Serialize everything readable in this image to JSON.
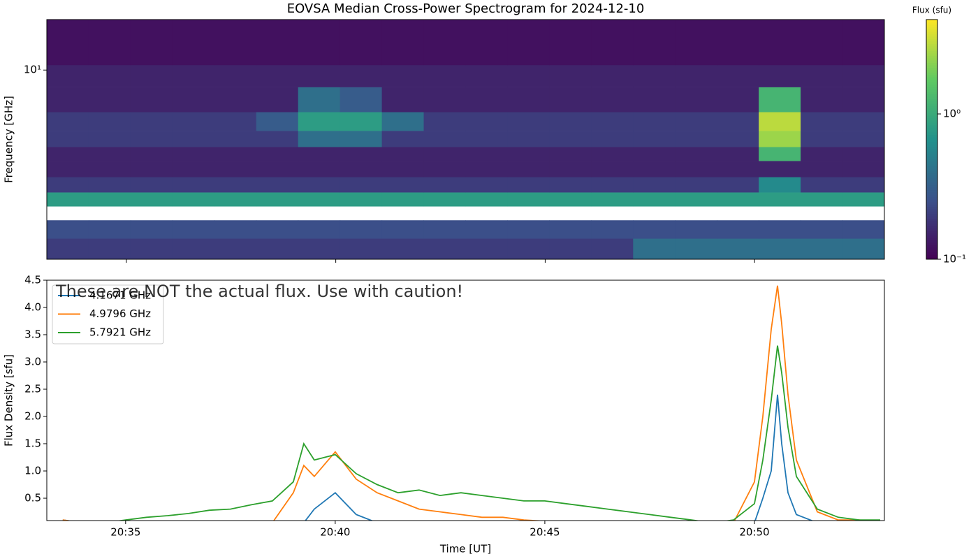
{
  "chart_data": [
    {
      "type": "heatmap",
      "title": "EOVSA Median Cross-Power Spectrogram for 2024-12-10",
      "ylabel": "Frequency [GHz]",
      "colorbar_label": "Flux (sfu)",
      "colormap": "viridis",
      "log": true,
      "xbins": [
        33.1,
        34.1,
        35.1,
        36.1,
        37.1,
        38.1,
        39.1,
        40.1,
        41.1,
        42.1,
        43.1,
        44.1,
        45.1,
        46.1,
        47.1,
        48.1,
        49.1,
        50.1,
        51.1,
        52.1,
        53.1
      ],
      "ybins": [
        1.64,
        2.0,
        2.38,
        2.72,
        3.11,
        3.6,
        4.2,
        4.8,
        5.6,
        6.7,
        8.5,
        10.5,
        16.2
      ],
      "z": [
        [
          0.2,
          0.2,
          0.2,
          0.2,
          0.2,
          0.2,
          0.2,
          0.2,
          0.2,
          0.2,
          0.2,
          0.2,
          0.2,
          0.2,
          0.4,
          0.4,
          0.4,
          0.4,
          0.4,
          0.4
        ],
        [
          0.25,
          0.25,
          0.25,
          0.25,
          0.25,
          0.25,
          0.25,
          0.25,
          0.25,
          0.25,
          0.25,
          0.25,
          0.25,
          0.25,
          0.25,
          0.25,
          0.25,
          0.25,
          0.25,
          0.25
        ],
        [
          null,
          null,
          null,
          null,
          null,
          null,
          null,
          null,
          null,
          null,
          null,
          null,
          null,
          null,
          null,
          null,
          null,
          null,
          null,
          null
        ],
        [
          0.8,
          0.8,
          0.8,
          0.8,
          0.8,
          0.8,
          0.8,
          0.8,
          0.8,
          0.8,
          0.8,
          0.8,
          0.8,
          0.8,
          0.8,
          0.8,
          0.8,
          0.8,
          0.8,
          0.8
        ],
        [
          0.2,
          0.2,
          0.2,
          0.2,
          0.2,
          0.2,
          0.2,
          0.2,
          0.2,
          0.2,
          0.2,
          0.2,
          0.2,
          0.2,
          0.2,
          0.2,
          0.2,
          0.6,
          0.2,
          0.2
        ],
        [
          0.15,
          0.15,
          0.15,
          0.15,
          0.15,
          0.15,
          0.15,
          0.15,
          0.15,
          0.15,
          0.15,
          0.15,
          0.15,
          0.15,
          0.15,
          0.15,
          0.15,
          0.15,
          0.15,
          0.15
        ],
        [
          0.15,
          0.15,
          0.15,
          0.15,
          0.15,
          0.15,
          0.15,
          0.15,
          0.15,
          0.15,
          0.15,
          0.15,
          0.15,
          0.15,
          0.15,
          0.15,
          0.15,
          1.2,
          0.15,
          0.15
        ],
        [
          0.2,
          0.2,
          0.2,
          0.2,
          0.2,
          0.2,
          0.4,
          0.4,
          0.2,
          0.2,
          0.2,
          0.2,
          0.2,
          0.2,
          0.2,
          0.2,
          0.2,
          2.5,
          0.2,
          0.2
        ],
        [
          0.2,
          0.2,
          0.2,
          0.2,
          0.2,
          0.3,
          0.8,
          0.8,
          0.4,
          0.2,
          0.2,
          0.2,
          0.2,
          0.2,
          0.2,
          0.2,
          0.2,
          3,
          0.2,
          0.2
        ],
        [
          0.15,
          0.15,
          0.15,
          0.15,
          0.15,
          0.15,
          0.4,
          0.3,
          0.15,
          0.15,
          0.15,
          0.15,
          0.15,
          0.15,
          0.15,
          0.15,
          0.15,
          1.2,
          0.15,
          0.15
        ],
        [
          0.15,
          0.15,
          0.15,
          0.15,
          0.15,
          0.15,
          0.15,
          0.15,
          0.15,
          0.15,
          0.15,
          0.15,
          0.15,
          0.15,
          0.15,
          0.15,
          0.15,
          0.15,
          0.15,
          0.15
        ],
        [
          0.12,
          0.12,
          0.12,
          0.12,
          0.12,
          0.12,
          0.12,
          0.12,
          0.12,
          0.12,
          0.12,
          0.12,
          0.12,
          0.12,
          0.12,
          0.12,
          0.12,
          0.12,
          0.12,
          0.12
        ]
      ],
      "ylim": [
        1.64,
        16.2
      ],
      "yticks": [
        {
          "value": 10,
          "label": "10¹"
        }
      ],
      "clim": [
        0.1,
        4.46
      ],
      "cticks": [
        {
          "value": 1,
          "label": "10⁰"
        },
        {
          "value": 0.1,
          "label": "10⁻¹"
        }
      ]
    },
    {
      "type": "line",
      "xlabel": "Time [UT]",
      "ylabel": "Flux Density [sfu]",
      "annotation": "These are NOT the actual flux. Use with caution!",
      "legend": "upper left",
      "x": [
        33.5,
        34,
        34.5,
        35,
        35.5,
        36,
        36.5,
        37,
        37.5,
        38,
        38.5,
        39,
        39.25,
        39.5,
        40,
        40.5,
        41,
        41.5,
        42,
        42.5,
        43,
        43.5,
        44,
        44.5,
        45,
        45.5,
        46,
        46.5,
        47,
        47.5,
        48,
        48.5,
        49,
        49.5,
        50,
        50.2,
        50.4,
        50.55,
        50.65,
        50.8,
        51,
        51.5,
        52,
        52.5,
        53
      ],
      "series": [
        {
          "name": "4.1671 GHz",
          "color": "#1f77b4",
          "values": [
            0.1,
            0.05,
            0.05,
            0.05,
            0.05,
            0.05,
            0.05,
            0.05,
            0.05,
            0.05,
            0.05,
            0.05,
            0.05,
            0.3,
            0.6,
            0.2,
            0.05,
            0.05,
            0.05,
            0.05,
            0.05,
            0.05,
            0.05,
            0.05,
            0.05,
            0.05,
            0.05,
            0.05,
            0.05,
            0.05,
            0.05,
            0.05,
            0.05,
            0.05,
            0.05,
            0.5,
            1.0,
            2.4,
            1.5,
            0.6,
            0.2,
            0.05,
            0.05,
            0.05,
            0.05
          ]
        },
        {
          "name": "4.9796 GHz",
          "color": "#ff7f0e",
          "values": [
            0.1,
            0.05,
            0.05,
            0.05,
            0.05,
            0.05,
            0.05,
            0.05,
            0.05,
            0.05,
            0.05,
            0.6,
            1.1,
            0.9,
            1.35,
            0.85,
            0.6,
            0.45,
            0.3,
            0.25,
            0.2,
            0.15,
            0.15,
            0.1,
            0.08,
            0.05,
            0.05,
            0.05,
            0.05,
            0.05,
            0.05,
            0.05,
            0.05,
            0.05,
            0.8,
            2.0,
            3.6,
            4.4,
            3.7,
            2.4,
            1.2,
            0.25,
            0.1,
            0.1,
            0.05
          ]
        },
        {
          "name": "5.7921 GHz",
          "color": "#2ca02c",
          "values": [
            0.05,
            0.08,
            0.05,
            0.1,
            0.15,
            0.18,
            0.22,
            0.28,
            0.3,
            0.38,
            0.45,
            0.8,
            1.5,
            1.2,
            1.3,
            0.95,
            0.75,
            0.6,
            0.65,
            0.55,
            0.6,
            0.55,
            0.5,
            0.45,
            0.45,
            0.4,
            0.35,
            0.3,
            0.25,
            0.2,
            0.15,
            0.1,
            0.05,
            0.1,
            0.4,
            1.2,
            2.3,
            3.3,
            2.8,
            1.8,
            0.9,
            0.3,
            0.15,
            0.1,
            0.1
          ]
        }
      ],
      "xlim": [
        33.12,
        53.1
      ],
      "ylim": [
        0.09,
        4.5
      ],
      "xticks": [
        {
          "value": 35,
          "label": "20:35"
        },
        {
          "value": 40,
          "label": "20:40"
        },
        {
          "value": 45,
          "label": "20:45"
        },
        {
          "value": 50,
          "label": "20:50"
        }
      ],
      "yticks": [
        0.5,
        {
          "value": 1,
          "label": "1.0"
        },
        1.5,
        {
          "value": 2,
          "label": "2.0"
        },
        2.5,
        {
          "value": 3,
          "label": "3.0"
        },
        3.5,
        {
          "value": 4,
          "label": "4.0"
        },
        4.5
      ]
    }
  ]
}
